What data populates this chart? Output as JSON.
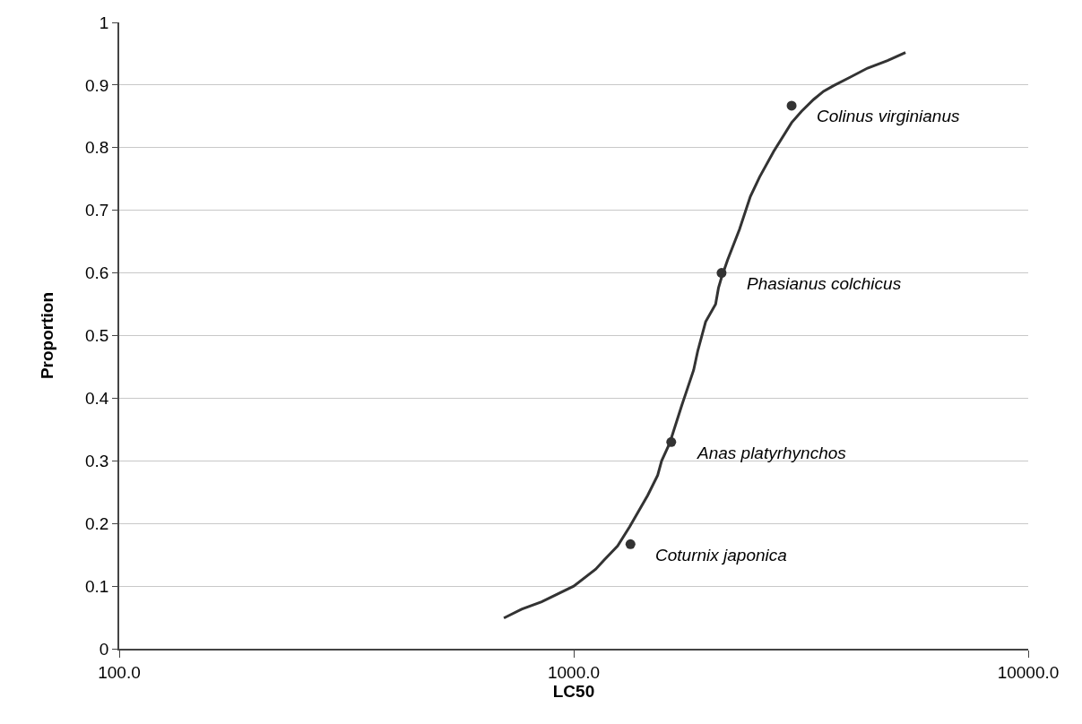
{
  "chart_data": {
    "type": "line",
    "xlabel": "LC50",
    "ylabel": "Proportion",
    "log": "x",
    "xlim": [
      100,
      10000
    ],
    "xticks": [
      {
        "value": 100,
        "label": "100.0"
      },
      {
        "value": 1000,
        "label": "1000.0"
      },
      {
        "value": 10000,
        "label": "10000.0"
      }
    ],
    "ylim": [
      0,
      1
    ],
    "yticks": [
      0,
      0.1,
      0.2,
      0.3,
      0.4,
      0.5,
      0.6,
      0.7,
      0.8,
      0.9,
      1
    ],
    "grid": "y",
    "series": [
      {
        "color": "#333333",
        "marker": "none",
        "line_style": "solid",
        "x": [
          702,
          768,
          850,
          1000,
          1118,
          1164,
          1249,
          1328,
          1455,
          1530,
          1561,
          1626,
          1728,
          1836,
          1874,
          1951,
          2052,
          2082,
          2115,
          2181,
          2317,
          2447,
          2564,
          2754,
          3016,
          3171,
          3372,
          3545,
          3730,
          4045,
          4431,
          4903,
          5370
        ],
        "values": [
          0.049,
          0.063,
          0.075,
          0.1,
          0.127,
          0.141,
          0.164,
          0.195,
          0.245,
          0.277,
          0.3,
          0.328,
          0.388,
          0.445,
          0.475,
          0.522,
          0.55,
          0.576,
          0.593,
          0.621,
          0.67,
          0.722,
          0.753,
          0.794,
          0.84,
          0.858,
          0.877,
          0.89,
          0.899,
          0.912,
          0.927,
          0.939,
          0.952
        ]
      },
      {
        "type": "scatter",
        "color": "#333333",
        "marker": "circle",
        "x": [
          1333,
          1639,
          2115,
          3016
        ],
        "values": [
          0.167,
          0.33,
          0.6,
          0.867
        ]
      }
    ],
    "annotations": [
      {
        "text": "Coturnix japonica",
        "x": 1333,
        "y": 0.167
      },
      {
        "text": "Anas platyrhynchos",
        "x": 1639,
        "y": 0.33
      },
      {
        "text": "Phasianus colchicus",
        "x": 2115,
        "y": 0.6
      },
      {
        "text": "Colinus virginianus",
        "x": 3016,
        "y": 0.867
      }
    ]
  }
}
